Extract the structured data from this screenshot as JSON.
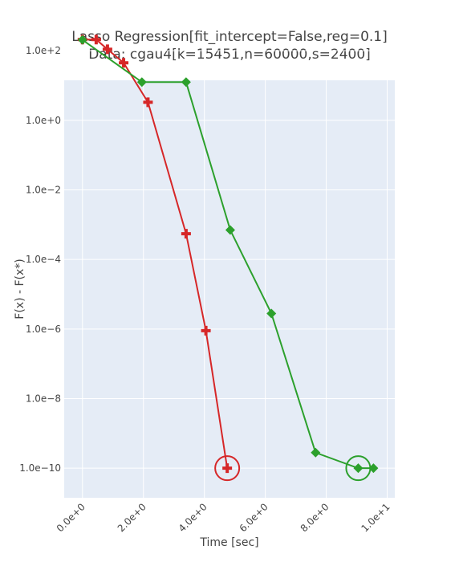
{
  "chart_data": {
    "type": "line",
    "title_line1": "Lasso Regression[fit_intercept=False,reg=0.1]",
    "title_line2": "Data: cgau4[k=15451,n=60000,s=2400]",
    "xlabel": "Time [sec]",
    "ylabel": "F(x) - F(x*)",
    "xlim": [
      -0.6,
      10.25
    ],
    "ylim_log10": [
      -10.85,
      1.15
    ],
    "yscale": "log",
    "grid": true,
    "x_ticks": [
      {
        "value": 0,
        "label": "0.0e+0"
      },
      {
        "value": 2,
        "label": "2.0e+0"
      },
      {
        "value": 4,
        "label": "4.0e+0"
      },
      {
        "value": 6,
        "label": "6.0e+0"
      },
      {
        "value": 8,
        "label": "8.0e+0"
      },
      {
        "value": 10,
        "label": "1.0e+1"
      }
    ],
    "y_ticks": [
      {
        "value": 100,
        "label": "1.0e+2"
      },
      {
        "value": 1,
        "label": "1.0e+0"
      },
      {
        "value": 0.01,
        "label": "1.0e−2"
      },
      {
        "value": 0.0001,
        "label": "1.0e−4"
      },
      {
        "value": 1e-06,
        "label": "1.0e−6"
      },
      {
        "value": 1e-08,
        "label": "1.0e−8"
      },
      {
        "value": 1e-10,
        "label": "1.0e−10"
      }
    ],
    "series": [
      {
        "color": "#d62728",
        "marker": "cross",
        "x": [
          0.0,
          0.45,
          0.82,
          1.35,
          2.15,
          3.4,
          4.05,
          4.75
        ],
        "y": [
          210,
          210,
          110,
          45,
          3.3,
          0.00055,
          9e-07,
          1e-10
        ],
        "highlight_index": 7
      },
      {
        "color": "#2ca02c",
        "marker": "diamond",
        "x": [
          0.0,
          1.95,
          3.4,
          4.85,
          6.2,
          7.65,
          9.05,
          9.55
        ],
        "y": [
          205,
          12.5,
          12.5,
          0.0007,
          2.8e-06,
          2.8e-10,
          1e-10,
          1e-10
        ],
        "highlight_index": 6
      }
    ]
  }
}
